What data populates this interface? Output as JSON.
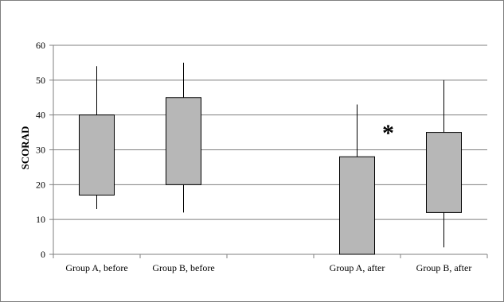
{
  "chart_data": {
    "type": "box",
    "title": "",
    "xlabel": "",
    "ylabel": "SCORAD",
    "ylim": [
      0,
      60
    ],
    "yticks": [
      0,
      10,
      20,
      30,
      40,
      50,
      60
    ],
    "grid": true,
    "categories": [
      "Group A, before",
      "Group B, before",
      "",
      "Group A, after",
      "Group B, after"
    ],
    "boxes": [
      {
        "category": "Group A, before",
        "whisker_low": 13,
        "q1": 17,
        "q3": 40,
        "whisker_high": 54
      },
      {
        "category": "Group B, before",
        "whisker_low": 12,
        "q1": 20,
        "q3": 45,
        "whisker_high": 55
      },
      {
        "category": "",
        "whisker_low": null,
        "q1": null,
        "q3": null,
        "whisker_high": null
      },
      {
        "category": "Group A, after",
        "whisker_low": 0,
        "q1": 0,
        "q3": 28,
        "whisker_high": 43
      },
      {
        "category": "Group B, after",
        "whisker_low": 2,
        "q1": 12,
        "q3": 35,
        "whisker_high": 50
      }
    ],
    "annotations": [
      {
        "text": "*",
        "near_category": "Group A, after",
        "y": 34
      }
    ],
    "colors": {
      "box_fill": "#b7b7b7",
      "box_stroke": "#000000",
      "grid": "#7f7f7f",
      "axis": "#7f7f7f"
    }
  }
}
